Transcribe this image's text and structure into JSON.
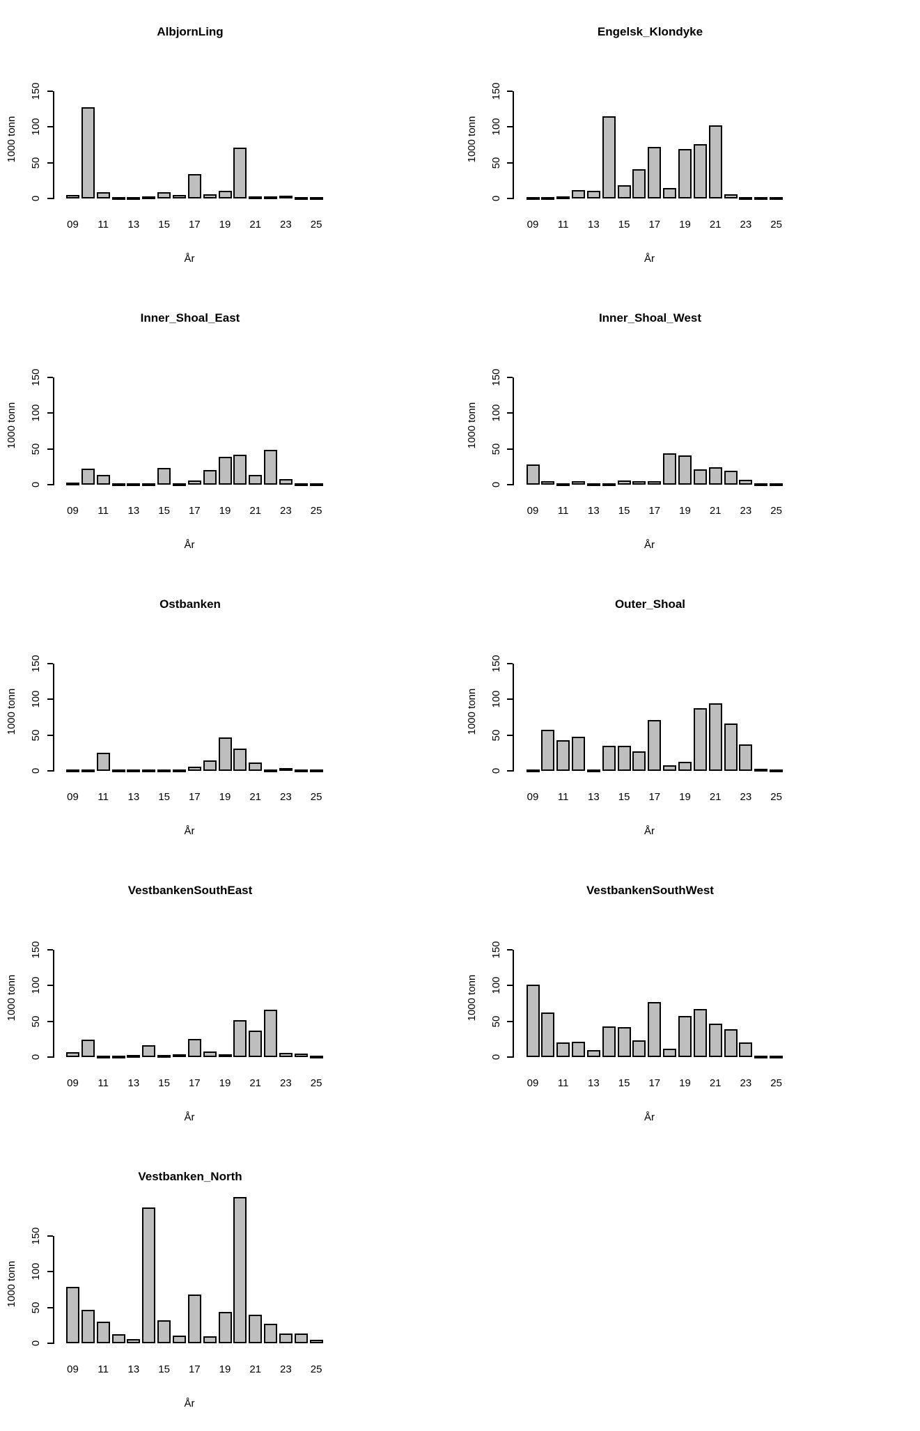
{
  "figure": {
    "ylabel": "1000 tonn",
    "xlabel": "År"
  },
  "colors": {
    "background": "#ffffff",
    "bar_fill": "#bebebe",
    "bar_border": "#000000",
    "axis": "#000000",
    "text": "#000000"
  },
  "chart_data": [
    {
      "type": "bar",
      "title": "AlbjornLing",
      "xlabel": "År",
      "ylabel": "1000 tonn",
      "ylim": [
        0,
        150
      ],
      "yticks": [
        0,
        50,
        100,
        150
      ],
      "categories": [
        "09",
        "10",
        "11",
        "12",
        "13",
        "14",
        "15",
        "16",
        "17",
        "18",
        "19",
        "20",
        "21",
        "22",
        "23",
        "24",
        "25"
      ],
      "x_tick_labels": [
        "09",
        "11",
        "13",
        "15",
        "17",
        "19",
        "21",
        "23",
        "25"
      ],
      "values": [
        5,
        128,
        9,
        2,
        0.7,
        3,
        8.5,
        5,
        34,
        5.5,
        11,
        71,
        3,
        3,
        3.5,
        1.5,
        0.6
      ]
    },
    {
      "type": "bar",
      "title": "Engelsk_Klondyke",
      "xlabel": "År",
      "ylabel": "1000 tonn",
      "ylim": [
        0,
        150
      ],
      "yticks": [
        0,
        50,
        100,
        150
      ],
      "categories": [
        "09",
        "10",
        "11",
        "12",
        "13",
        "14",
        "15",
        "16",
        "17",
        "18",
        "19",
        "20",
        "21",
        "22",
        "23",
        "24",
        "25"
      ],
      "x_tick_labels": [
        "09",
        "11",
        "13",
        "15",
        "17",
        "19",
        "21",
        "23",
        "25"
      ],
      "values": [
        1.3,
        1,
        2.6,
        12,
        10.7,
        115,
        18.5,
        41,
        72,
        15,
        69,
        76,
        102,
        5.5,
        2,
        0.7,
        0.7
      ]
    },
    {
      "type": "bar",
      "title": "Inner_Shoal_East",
      "xlabel": "År",
      "ylabel": "1000 tonn",
      "ylim": [
        0,
        150
      ],
      "yticks": [
        0,
        50,
        100,
        150
      ],
      "categories": [
        "09",
        "10",
        "11",
        "12",
        "13",
        "14",
        "15",
        "16",
        "17",
        "18",
        "19",
        "20",
        "21",
        "22",
        "23",
        "24",
        "25"
      ],
      "x_tick_labels": [
        "09",
        "11",
        "13",
        "15",
        "17",
        "19",
        "21",
        "23",
        "25"
      ],
      "values": [
        2.5,
        22,
        13.5,
        1.5,
        0.4,
        0.4,
        23,
        0.7,
        6,
        20,
        39,
        42,
        13.5,
        49,
        7.5,
        1.5,
        0.4
      ]
    },
    {
      "type": "bar",
      "title": "Inner_Shoal_West",
      "xlabel": "År",
      "ylabel": "1000 tonn",
      "ylim": [
        0,
        150
      ],
      "yticks": [
        0,
        50,
        100,
        150
      ],
      "categories": [
        "09",
        "10",
        "11",
        "12",
        "13",
        "14",
        "15",
        "16",
        "17",
        "18",
        "19",
        "20",
        "21",
        "22",
        "23",
        "24",
        "25"
      ],
      "x_tick_labels": [
        "09",
        "11",
        "13",
        "15",
        "17",
        "19",
        "21",
        "23",
        "25"
      ],
      "values": [
        28,
        4.5,
        2,
        4.5,
        0.4,
        0.8,
        6,
        4.5,
        4.5,
        44,
        41,
        21,
        24.5,
        19,
        7,
        2,
        0.4
      ]
    },
    {
      "type": "bar",
      "title": "Ostbanken",
      "xlabel": "År",
      "ylabel": "1000 tonn",
      "ylim": [
        0,
        150
      ],
      "yticks": [
        0,
        50,
        100,
        150
      ],
      "categories": [
        "09",
        "10",
        "11",
        "12",
        "13",
        "14",
        "15",
        "16",
        "17",
        "18",
        "19",
        "20",
        "21",
        "22",
        "23",
        "24",
        "25"
      ],
      "x_tick_labels": [
        "09",
        "11",
        "13",
        "15",
        "17",
        "19",
        "21",
        "23",
        "25"
      ],
      "values": [
        0.8,
        2,
        25,
        1.5,
        0.3,
        2,
        2,
        0.8,
        5.5,
        15,
        47,
        31.5,
        12,
        0.3,
        4,
        0.8,
        0.3
      ]
    },
    {
      "type": "bar",
      "title": "Outer_Shoal",
      "xlabel": "År",
      "ylabel": "1000 tonn",
      "ylim": [
        0,
        150
      ],
      "yticks": [
        0,
        50,
        100,
        150
      ],
      "categories": [
        "09",
        "10",
        "11",
        "12",
        "13",
        "14",
        "15",
        "16",
        "17",
        "18",
        "19",
        "20",
        "21",
        "22",
        "23",
        "24",
        "25"
      ],
      "x_tick_labels": [
        "09",
        "11",
        "13",
        "15",
        "17",
        "19",
        "21",
        "23",
        "25"
      ],
      "values": [
        1,
        57.5,
        43,
        48,
        1.5,
        35.5,
        35.5,
        27,
        71.5,
        7.5,
        13,
        88,
        94.5,
        66.5,
        37.5,
        3,
        0.8
      ]
    },
    {
      "type": "bar",
      "title": "VestbankenSouthEast",
      "xlabel": "År",
      "ylabel": "1000 tonn",
      "ylim": [
        0,
        150
      ],
      "yticks": [
        0,
        50,
        100,
        150
      ],
      "categories": [
        "09",
        "10",
        "11",
        "12",
        "13",
        "14",
        "15",
        "16",
        "17",
        "18",
        "19",
        "20",
        "21",
        "22",
        "23",
        "24",
        "25"
      ],
      "x_tick_labels": [
        "09",
        "11",
        "13",
        "15",
        "17",
        "19",
        "21",
        "23",
        "25"
      ],
      "values": [
        6.5,
        24.5,
        1.6,
        0.6,
        2.6,
        17,
        2.6,
        3.6,
        25,
        8,
        3.6,
        52,
        37.5,
        66,
        6.2,
        4.5,
        1.3
      ]
    },
    {
      "type": "bar",
      "title": "VestbankenSouthWest",
      "xlabel": "År",
      "ylabel": "1000 tonn",
      "ylim": [
        0,
        150
      ],
      "yticks": [
        0,
        50,
        100,
        150
      ],
      "categories": [
        "09",
        "10",
        "11",
        "12",
        "13",
        "14",
        "15",
        "16",
        "17",
        "18",
        "19",
        "20",
        "21",
        "22",
        "23",
        "24",
        "25"
      ],
      "x_tick_labels": [
        "09",
        "11",
        "13",
        "15",
        "17",
        "19",
        "21",
        "23",
        "25"
      ],
      "values": [
        101,
        62.5,
        20,
        21.5,
        9.5,
        42.5,
        42,
        23.5,
        77,
        11.5,
        57.5,
        67,
        46.5,
        38.5,
        20.5,
        2,
        1.5
      ]
    },
    {
      "type": "bar",
      "title": "Vestbanken_North",
      "xlabel": "År",
      "ylabel": "1000 tonn",
      "ylim": [
        0,
        150
      ],
      "yticks": [
        0,
        50,
        100,
        150
      ],
      "categories": [
        "09",
        "10",
        "11",
        "12",
        "13",
        "14",
        "15",
        "16",
        "17",
        "18",
        "19",
        "20",
        "21",
        "22",
        "23",
        "24",
        "25"
      ],
      "x_tick_labels": [
        "09",
        "11",
        "13",
        "15",
        "17",
        "19",
        "21",
        "23",
        "25"
      ],
      "values": [
        79,
        47,
        30,
        12.5,
        6,
        190,
        32,
        10.5,
        68,
        10,
        44,
        205,
        40,
        27,
        14,
        13.5,
        5
      ]
    }
  ]
}
